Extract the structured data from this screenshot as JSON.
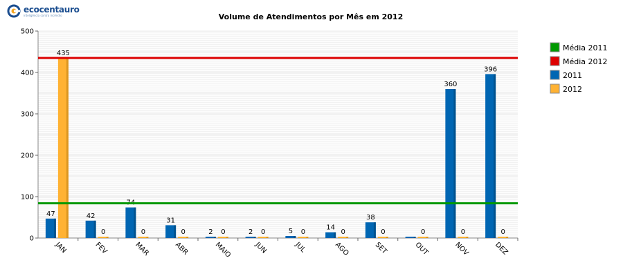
{
  "logo": {
    "text": "ecocentauro",
    "subtext": "inteligência contra incêndio",
    "colors": {
      "primary": "#1a4d8f",
      "accent": "#f5a623"
    }
  },
  "chart_data": {
    "type": "bar",
    "title": "Volume de Atendimentos por Mês em 2012",
    "xlabel": "",
    "ylabel": "",
    "ylim": [
      0,
      500
    ],
    "yticks": [
      0,
      100,
      200,
      300,
      400,
      500
    ],
    "categories": [
      "JAN",
      "FEV",
      "MAR",
      "ABR",
      "MAIO",
      "JUN",
      "JUL",
      "AGO",
      "SET",
      "OUT",
      "NOV",
      "DEZ"
    ],
    "series": [
      {
        "name": "2011",
        "color": "#0066b3",
        "values": [
          47,
          42,
          74,
          31,
          2,
          2,
          5,
          14,
          38,
          0,
          360,
          396
        ],
        "labels": [
          "47",
          "42",
          "74",
          "31",
          "2",
          "2",
          "5",
          "14",
          "38",
          "",
          "360",
          "396"
        ]
      },
      {
        "name": "2012",
        "color": "#ffb233",
        "values": [
          435,
          0,
          0,
          0,
          0,
          0,
          0,
          0,
          0,
          0,
          0,
          0
        ],
        "labels": [
          "435",
          "0",
          "0",
          "0",
          "0",
          "0",
          "0",
          "0",
          "0",
          "0",
          "0",
          "0"
        ]
      }
    ],
    "reference_lines": [
      {
        "name": "Média 2011",
        "value": 84,
        "color": "#009900"
      },
      {
        "name": "Média 2012",
        "value": 435,
        "color": "#dd0000"
      }
    ],
    "legend": {
      "placement": "right",
      "items": [
        {
          "name": "Média 2011",
          "color": "#009900"
        },
        {
          "name": "Média 2012",
          "color": "#dd0000"
        },
        {
          "name": "2011",
          "color": "#0066b3"
        },
        {
          "name": "2012",
          "color": "#ffb233"
        }
      ]
    },
    "grid": true
  }
}
